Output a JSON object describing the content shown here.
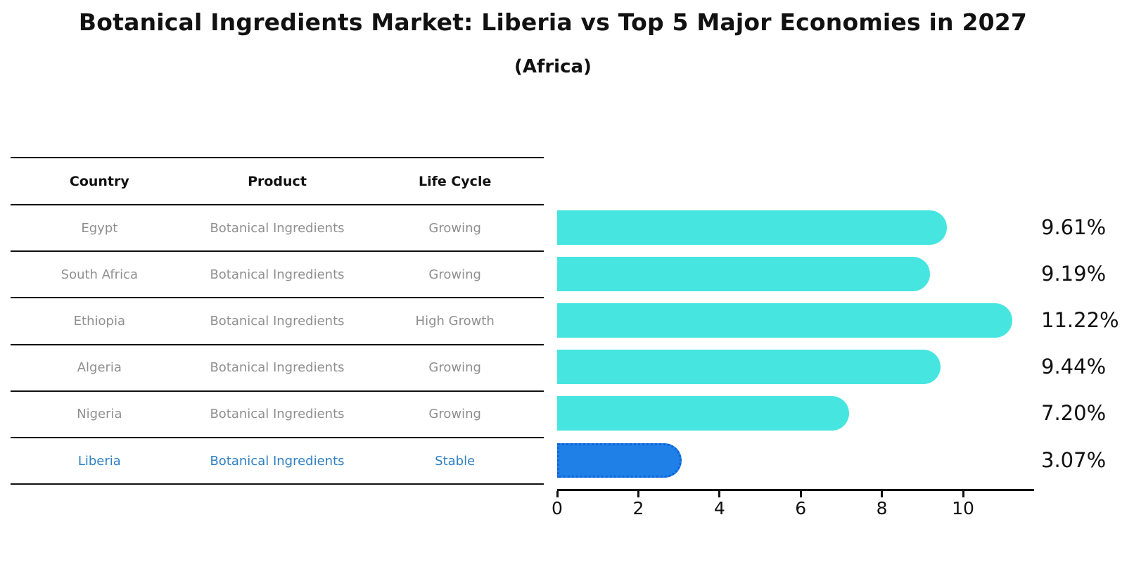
{
  "title": "Botanical Ingredients Market: Liberia vs Top 5 Major Economies in 2027",
  "subtitle": "(Africa)",
  "table": {
    "headers": [
      "Country",
      "Product",
      "Life Cycle"
    ],
    "rows": [
      {
        "country": "Egypt",
        "product": "Botanical Ingredients",
        "life_cycle": "Growing",
        "highlight": false
      },
      {
        "country": "South Africa",
        "product": "Botanical Ingredients",
        "life_cycle": "Growing",
        "highlight": false
      },
      {
        "country": "Ethiopia",
        "product": "Botanical Ingredients",
        "life_cycle": "High Growth",
        "highlight": false
      },
      {
        "country": "Algeria",
        "product": "Botanical Ingredients",
        "life_cycle": "Growing",
        "highlight": false
      },
      {
        "country": "Nigeria",
        "product": "Botanical Ingredients",
        "life_cycle": "Growing",
        "highlight": false
      },
      {
        "country": "Liberia",
        "product": "Botanical Ingredients",
        "life_cycle": "Stable",
        "highlight": true
      }
    ]
  },
  "chart_data": {
    "type": "bar",
    "orientation": "horizontal",
    "title": "Botanical Ingredients Market: Liberia vs Top 5 Major Economies in 2027 (Africa)",
    "categories": [
      "Egypt",
      "South Africa",
      "Ethiopia",
      "Algeria",
      "Nigeria",
      "Liberia"
    ],
    "values": [
      9.61,
      9.19,
      11.22,
      9.44,
      7.2,
      3.07
    ],
    "value_labels": [
      "9.61%",
      "9.19%",
      "11.22%",
      "9.44%",
      "7.20%",
      "3.07%"
    ],
    "xlabel": "",
    "ylabel": "",
    "xlim": [
      0,
      11.78
    ],
    "xticks": [
      0,
      2,
      4,
      6,
      8,
      10
    ],
    "grid": false,
    "legend": false,
    "bar_color": "#46e5e0",
    "highlight_bar_color": "#1f80e8",
    "highlight_bar_border_color": "#0e63d8",
    "highlight_index": 5,
    "highlight_text_color": "#2e80c4",
    "row_text_color": "#8f8f8f"
  }
}
